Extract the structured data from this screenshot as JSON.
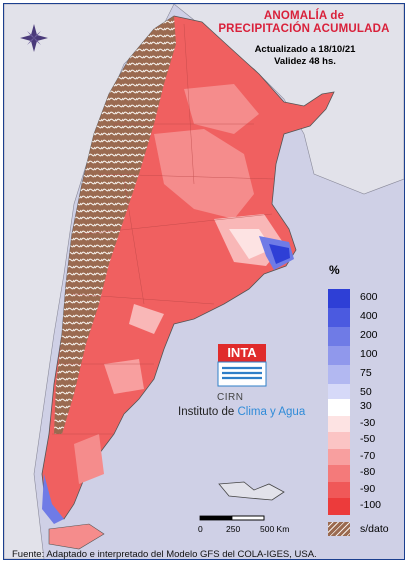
{
  "title": {
    "line1": "ANOMALÍA de",
    "line2": "PRECIPITACIÓN ACUMULADA"
  },
  "subtitle": {
    "updated": "Actualizado a 18/10/21",
    "validity": "Validez 48 hs."
  },
  "legend": {
    "unit": "%",
    "positive": [
      {
        "label": "600",
        "color": "#2e3fd6"
      },
      {
        "label": "400",
        "color": "#4b5ae0"
      },
      {
        "label": "200",
        "color": "#6f7be6"
      },
      {
        "label": "100",
        "color": "#9098ec"
      },
      {
        "label": "75",
        "color": "#b2b8f1"
      },
      {
        "label": "50",
        "color": "#d6d9f8"
      }
    ],
    "negative": [
      {
        "label": "30",
        "color": "#ffffff"
      },
      {
        "label": "-30",
        "color": "#fde3e3"
      },
      {
        "label": "-50",
        "color": "#fbc4c4"
      },
      {
        "label": "-70",
        "color": "#f89f9f"
      },
      {
        "label": "-80",
        "color": "#f47a7a"
      },
      {
        "label": "-90",
        "color": "#f05858"
      },
      {
        "label": "-100",
        "color": "#ec3b3b"
      }
    ],
    "nodata_label": "s/dato",
    "nodata_color": "#9a6a50"
  },
  "logo": {
    "text": "INTA",
    "cirn": "CIRN",
    "institute_prefix": "Instituto de ",
    "institute_highlight": "Clima y Agua"
  },
  "scale": {
    "labels": [
      "0",
      "250",
      "500 Km"
    ]
  },
  "footer": "Fuente: Adaptado e interpretado del Modelo GFS del COLA-IGES, USA.",
  "colors": {
    "frame": "#1b3f8f",
    "background": "#cfd0e6",
    "title": "#d9203a"
  }
}
